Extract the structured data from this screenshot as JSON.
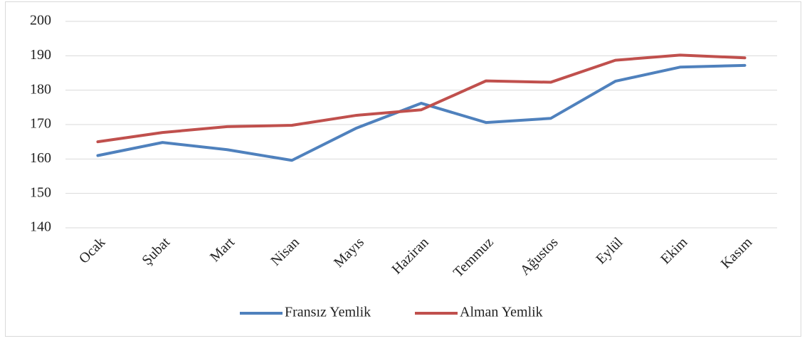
{
  "chart_data": {
    "type": "line",
    "categories": [
      "Ocak",
      "Şubat",
      "Mart",
      "Nisan",
      "Mayıs",
      "Haziran",
      "Temmuz",
      "Ağustos",
      "Eylül",
      "Ekim",
      "Kasım"
    ],
    "series": [
      {
        "name": "Fransız Yemlik",
        "color": "#4f81bd",
        "values": [
          161,
          164.8,
          162.7,
          159.6,
          169,
          176.2,
          170.6,
          171.8,
          182.6,
          186.7,
          187.2
        ]
      },
      {
        "name": "Alman Yemlik",
        "color": "#c0504d",
        "values": [
          165,
          167.7,
          169.4,
          169.8,
          172.7,
          174.3,
          182.7,
          182.3,
          188.7,
          190.2,
          189.4
        ]
      }
    ],
    "ylim": [
      140,
      200
    ],
    "yticks": [
      140,
      150,
      160,
      170,
      180,
      190,
      200
    ],
    "grid": true,
    "legend": "bottom"
  }
}
